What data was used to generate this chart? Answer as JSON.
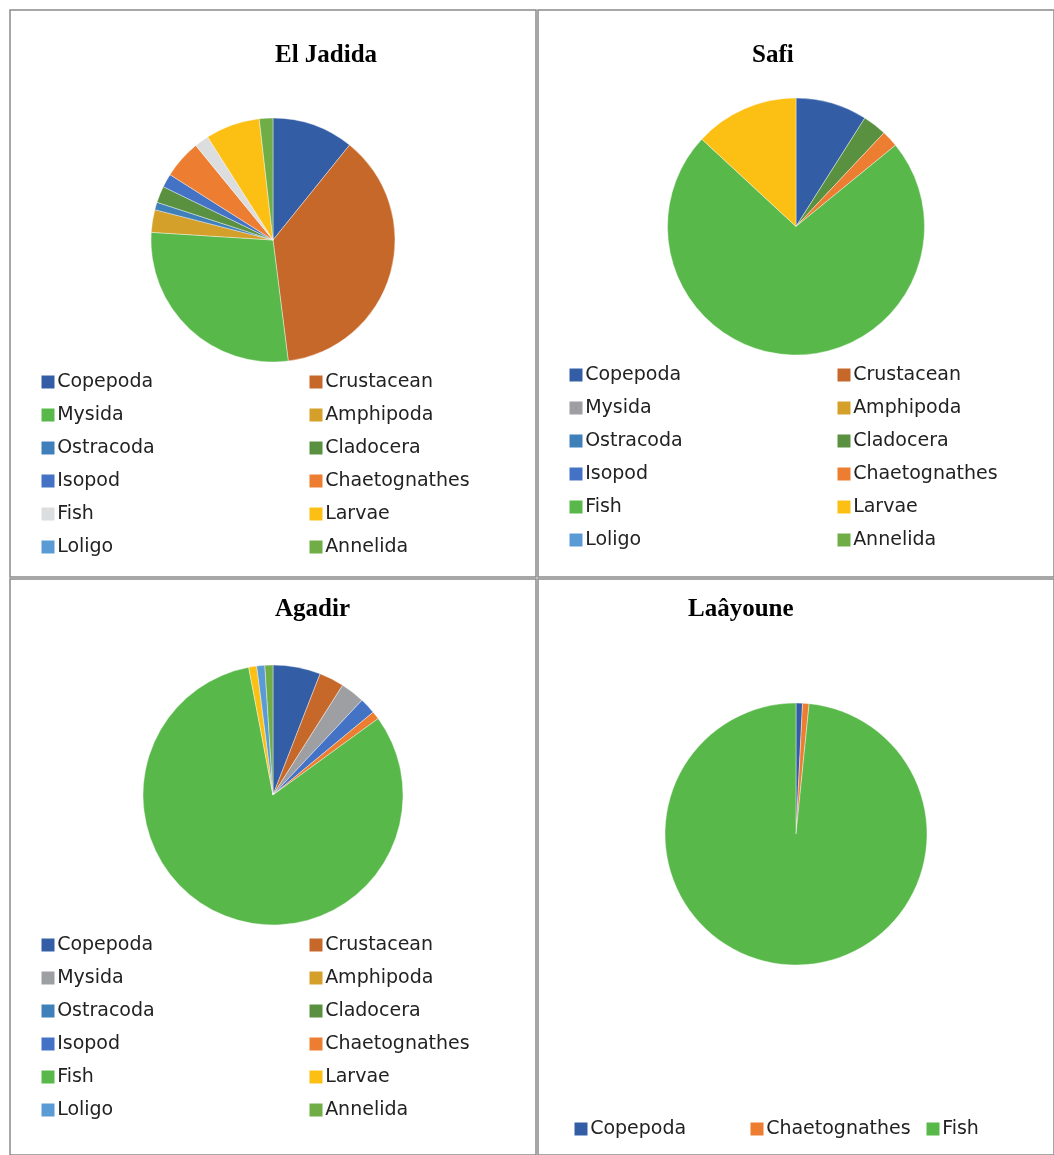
{
  "chart_data": [
    {
      "type": "pie",
      "title": "El Jadida",
      "legend": "bottom",
      "categories": [
        "Copepoda",
        "Crustacean",
        "Mysida",
        "Amphipoda",
        "Ostracoda",
        "Cladocera",
        "Isopod",
        "Chaetognathes",
        "Fish",
        "Larvae",
        "Loligo",
        "Annelida"
      ],
      "values": [
        10.8,
        37.2,
        28,
        3,
        1,
        2.2,
        1.8,
        5.1,
        1.9,
        7.2,
        0,
        1.8
      ],
      "colors": [
        "#335ea6",
        "#c5682a",
        "#58b94a",
        "#d4a02a",
        "#3f7fba",
        "#5a9140",
        "#4472c4",
        "#ed7d31",
        "#dcdddf",
        "#fcc014",
        "#5b9bd5",
        "#70ad47"
      ]
    },
    {
      "type": "pie",
      "title": "Safi",
      "legend": "bottom",
      "categories": [
        "Copepoda",
        "Crustacean",
        "Mysida",
        "Amphipoda",
        "Ostracoda",
        "Cladocera",
        "Isopod",
        "Chaetognathes",
        "Fish",
        "Larvae",
        "Loligo",
        "Annelida"
      ],
      "values": [
        9,
        0,
        0,
        0,
        0,
        3,
        0,
        2.1,
        72.8,
        13.1,
        0,
        0
      ],
      "colors": [
        "#335ea6",
        "#c5682a",
        "#9e9fa2",
        "#d4a02a",
        "#3f7fba",
        "#5a9140",
        "#4472c4",
        "#ed7d31",
        "#58b94a",
        "#fcc014",
        "#5b9bd5",
        "#70ad47"
      ]
    },
    {
      "type": "pie",
      "title": "Agadir",
      "legend": "bottom",
      "categories": [
        "Copepoda",
        "Crustacean",
        "Mysida",
        "Amphipoda",
        "Ostracoda",
        "Cladocera",
        "Isopod",
        "Chaetognathes",
        "Fish",
        "Larvae",
        "Loligo",
        "Annelida"
      ],
      "values": [
        5.9,
        3.1,
        3,
        0,
        0,
        0,
        2,
        1,
        82,
        1,
        1,
        1
      ],
      "colors": [
        "#335ea6",
        "#c5682a",
        "#9e9fa2",
        "#d4a02a",
        "#3f7fba",
        "#5a9140",
        "#4472c4",
        "#ed7d31",
        "#58b94a",
        "#fcc014",
        "#5b9bd5",
        "#70ad47"
      ]
    },
    {
      "type": "pie",
      "title": "Laâyoune",
      "legend": "bottom",
      "categories": [
        "Copepoda",
        "Chaetognathes",
        "Fish"
      ],
      "values": [
        0.8,
        0.8,
        98.4
      ],
      "colors": [
        "#335ea6",
        "#ed7d31",
        "#58b94a"
      ]
    }
  ]
}
